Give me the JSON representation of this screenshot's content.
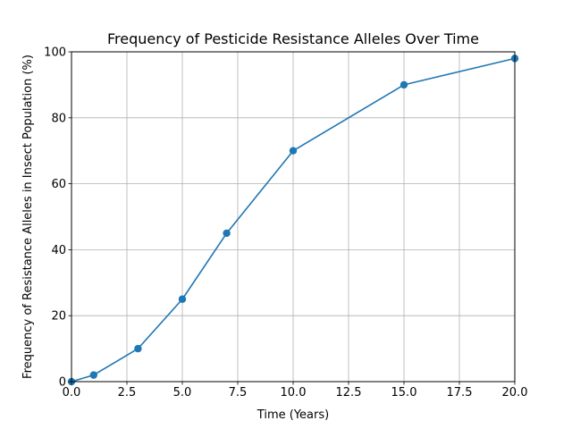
{
  "chart_data": {
    "type": "line",
    "title": "Frequency of Pesticide Resistance Alleles Over Time",
    "xlabel": "Time (Years)",
    "ylabel": "Frequency of Resistance Alleles in Insect Population (%)",
    "xlim": [
      0,
      20
    ],
    "ylim": [
      0,
      100
    ],
    "grid": true,
    "x_ticks": [
      "0.0",
      "2.5",
      "5.0",
      "7.5",
      "10.0",
      "12.5",
      "15.0",
      "17.5",
      "20.0"
    ],
    "y_ticks": [
      "0",
      "20",
      "40",
      "60",
      "80",
      "100"
    ],
    "series": [
      {
        "x": [
          0,
          1,
          3,
          5,
          7,
          10,
          15,
          20
        ],
        "values": [
          0,
          2,
          10,
          25,
          45,
          70,
          90,
          98
        ],
        "color": "#1f77b4",
        "marker": "circle"
      }
    ]
  }
}
